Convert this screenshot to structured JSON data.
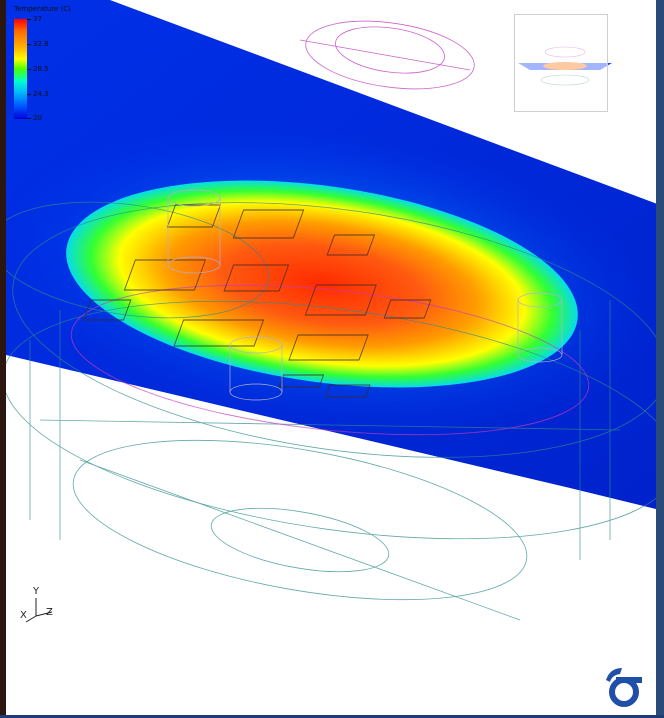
{
  "legend": {
    "title": "Temperature (C)",
    "ticks": [
      "37",
      "32.8",
      "28.5",
      "24.3",
      "20"
    ]
  },
  "axes": {
    "y": "Y",
    "x": "X",
    "z": "Z"
  },
  "colors": {
    "hot": "#ff2a00",
    "warm": "#ffb000",
    "mid": "#ffff00",
    "cool": "#33ff66",
    "cold": "#0033ff",
    "mesh_teal": "#2e8b8b",
    "mesh_magenta": "#c03cc0",
    "logo": "#1f4fa8"
  }
}
